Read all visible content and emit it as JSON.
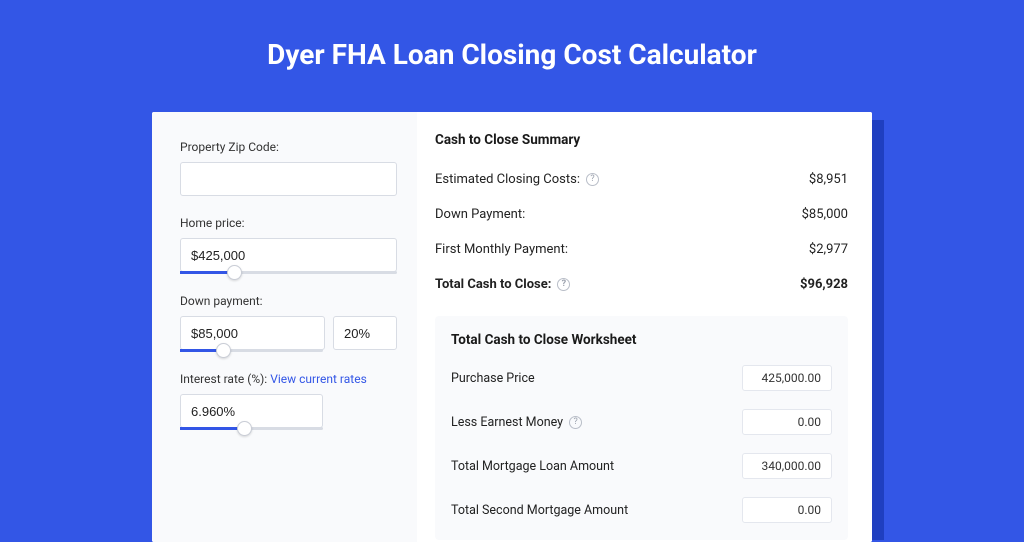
{
  "page": {
    "title": "Dyer FHA Loan Closing Cost Calculator",
    "background_color": "#3356e6",
    "card_bg": "#ffffff",
    "panel_bg": "#f9fafc",
    "accent": "#3356e6",
    "text_color": "#1a1a1a",
    "border_color": "#d8dce4"
  },
  "inputs": {
    "zip": {
      "label": "Property Zip Code:",
      "value": ""
    },
    "home_price": {
      "label": "Home price:",
      "value": "$425,000",
      "slider_pct": 25
    },
    "down_payment": {
      "label": "Down payment:",
      "value": "$85,000",
      "pct_value": "20%",
      "slider_pct": 30
    },
    "interest_rate": {
      "label": "Interest rate (%):",
      "link_text": "View current rates",
      "value": "6.960%",
      "slider_pct": 45
    }
  },
  "summary": {
    "title": "Cash to Close Summary",
    "rows": [
      {
        "label": "Estimated Closing Costs:",
        "help": true,
        "value": "$8,951",
        "bold": false
      },
      {
        "label": "Down Payment:",
        "help": false,
        "value": "$85,000",
        "bold": false
      },
      {
        "label": "First Monthly Payment:",
        "help": false,
        "value": "$2,977",
        "bold": false
      },
      {
        "label": "Total Cash to Close:",
        "help": true,
        "value": "$96,928",
        "bold": true
      }
    ]
  },
  "worksheet": {
    "title": "Total Cash to Close Worksheet",
    "rows": [
      {
        "label": "Purchase Price",
        "help": false,
        "value": "425,000.00"
      },
      {
        "label": "Less Earnest Money",
        "help": true,
        "value": "0.00"
      },
      {
        "label": "Total Mortgage Loan Amount",
        "help": false,
        "value": "340,000.00"
      },
      {
        "label": "Total Second Mortgage Amount",
        "help": false,
        "value": "0.00"
      }
    ]
  }
}
